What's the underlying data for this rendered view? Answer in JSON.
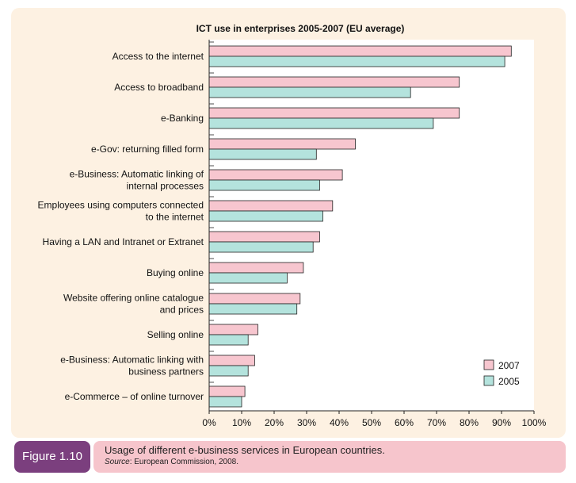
{
  "figure": {
    "label": "Figure 1.10",
    "caption": "Usage of different e-business services in European countries.",
    "source_label": "Source",
    "source_text": ": European Commission, 2008."
  },
  "colors": {
    "s2007": "#f7c6cf",
    "s2005": "#b4e3dd",
    "panel": "#fdf1e2",
    "plot": "#ffffff",
    "figure_label": "#7b3f7e",
    "caption_bg": "#f6c5cc"
  },
  "chart_data": {
    "type": "bar",
    "orientation": "horizontal",
    "title": "ICT use in enterprises 2005-2007 (EU average)",
    "categories": [
      [
        "Access to the internet"
      ],
      [
        "Access to broadband"
      ],
      [
        "e-Banking"
      ],
      [
        "e-Gov: returning filled form"
      ],
      [
        "e-Business: Automatic linking of",
        "internal processes"
      ],
      [
        "Employees using computers connected",
        "to the internet"
      ],
      [
        "Having a LAN and Intranet or Extranet"
      ],
      [
        "Buying online"
      ],
      [
        "Website offering online catalogue",
        "and prices"
      ],
      [
        "Selling online"
      ],
      [
        "e-Business: Automatic linking with",
        "business partners"
      ],
      [
        "e-Commerce – of online turnover"
      ]
    ],
    "series": [
      {
        "name": "2007",
        "values": [
          93,
          77,
          77,
          45,
          41,
          38,
          34,
          29,
          28,
          15,
          14,
          11
        ]
      },
      {
        "name": "2005",
        "values": [
          91,
          62,
          69,
          33,
          34,
          35,
          32,
          24,
          27,
          12,
          12,
          10
        ]
      }
    ],
    "xlim": [
      0,
      100
    ],
    "xticks": [
      "0%",
      "10%",
      "20%",
      "30%",
      "40%",
      "50%",
      "60%",
      "70%",
      "80%",
      "90%",
      "100%"
    ],
    "legend": "bottom-right",
    "grid": false
  }
}
